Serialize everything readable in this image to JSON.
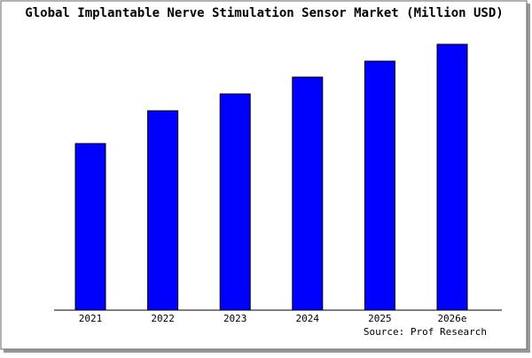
{
  "chart_data": {
    "type": "bar",
    "title": "Global Implantable Nerve Stimulation Sensor Market (Million USD)",
    "source": "Source: Prof Research",
    "categories": [
      "2021",
      "2022",
      "2023",
      "2024",
      "2025",
      "2026e"
    ],
    "values": [
      188,
      225,
      244,
      263,
      281,
      300
    ],
    "color": "#0000ff",
    "ylim": [
      0,
      305
    ]
  }
}
